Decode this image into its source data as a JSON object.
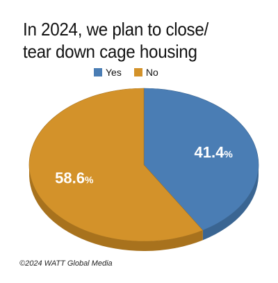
{
  "chart_data": {
    "type": "pie",
    "title_lines": [
      "In 2024, we plan to close/",
      "tear down cage housing"
    ],
    "slices": [
      {
        "label": "Yes",
        "value": 41.4,
        "display_label": "41.4",
        "unit": "%",
        "color": "#4a7db4",
        "side_color": "#3a6592"
      },
      {
        "label": "No",
        "value": 58.6,
        "display_label": "58.6",
        "unit": "%",
        "color": "#d3922a",
        "side_color": "#a8721d"
      }
    ],
    "legend_placement": "top-center",
    "style": "3d"
  },
  "footer": {
    "copyright": "©2024 WATT Global Media"
  }
}
